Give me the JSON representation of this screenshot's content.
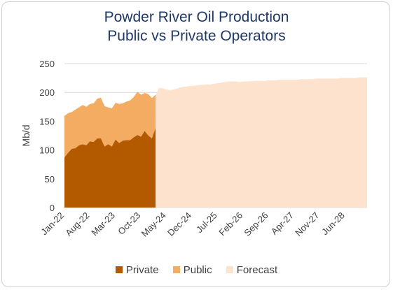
{
  "chart_data": {
    "type": "area",
    "title": "Powder River Oil Production",
    "subtitle": "Public vs Private Operators",
    "xlabel": "",
    "ylabel": "Mb/d",
    "ylim": [
      0,
      250
    ],
    "yticks": [
      0,
      50,
      100,
      150,
      200,
      250
    ],
    "xticks": [
      "Jan-22",
      "Aug-22",
      "Mar-23",
      "Oct-23",
      "May-24",
      "Dec-24",
      "Jul-25",
      "Feb-26",
      "Sep-26",
      "Apr-27",
      "Nov-27",
      "Jun-28"
    ],
    "grid": "horizontal",
    "legend_position": "bottom",
    "colors": {
      "Private": "#b35900",
      "Public": "#f4ac63",
      "Forecast": "#fde3cd",
      "gridline": "#d9d9d9",
      "title": "#1f3864"
    },
    "stacked": true,
    "historical": {
      "x": [
        "Jan-22",
        "Feb-22",
        "Mar-22",
        "Apr-22",
        "May-22",
        "Jun-22",
        "Jul-22",
        "Aug-22",
        "Sep-22",
        "Oct-22",
        "Nov-22",
        "Dec-22",
        "Jan-23",
        "Feb-23",
        "Mar-23",
        "Apr-23",
        "May-23",
        "Jun-23",
        "Jul-23",
        "Aug-23",
        "Sep-23",
        "Oct-23",
        "Nov-23",
        "Dec-23",
        "Jan-24",
        "Feb-24"
      ],
      "series": [
        {
          "name": "Private",
          "values": [
            87,
            95,
            102,
            103,
            108,
            110,
            108,
            115,
            114,
            120,
            120,
            106,
            110,
            106,
            118,
            112,
            116,
            117,
            117,
            122,
            126,
            123,
            133,
            125,
            120,
            138
          ]
        },
        {
          "name": "Public",
          "values": [
            72,
            69,
            64,
            67,
            66,
            68,
            67,
            65,
            67,
            69,
            71,
            70,
            64,
            66,
            64,
            68,
            65,
            67,
            69,
            70,
            75,
            73,
            66,
            72,
            70,
            58
          ]
        }
      ]
    },
    "forecast": {
      "name": "Forecast",
      "x": [
        "Feb-24",
        "Mar-24",
        "Apr-24",
        "May-24",
        "Jun-24",
        "Jul-24",
        "Aug-24",
        "Sep-24",
        "Oct-24",
        "Nov-24",
        "Dec-24",
        "Jan-25",
        "Feb-25",
        "Mar-25",
        "Apr-25",
        "May-25",
        "Jun-25",
        "Jul-25",
        "Aug-25",
        "Sep-25",
        "Oct-25",
        "Nov-25",
        "Dec-25",
        "Jan-26",
        "Feb-26",
        "Mar-26",
        "Apr-26",
        "May-26",
        "Jun-26",
        "Jul-26",
        "Aug-26",
        "Sep-26",
        "Oct-26",
        "Nov-26",
        "Dec-26",
        "Jan-27",
        "Feb-27",
        "Mar-27",
        "Apr-27",
        "May-27",
        "Jun-27",
        "Jul-27",
        "Aug-27",
        "Sep-27",
        "Oct-27",
        "Nov-27",
        "Dec-27",
        "Jan-28",
        "Feb-28",
        "Mar-28",
        "Apr-28",
        "May-28",
        "Jun-28",
        "Jul-28",
        "Aug-28",
        "Sep-28",
        "Oct-28",
        "Nov-28",
        "Dec-28"
      ],
      "values": [
        196,
        208,
        207,
        205,
        204,
        205,
        207,
        209,
        210,
        211,
        211,
        212,
        213,
        213,
        214,
        214,
        215,
        216,
        217,
        218,
        219,
        219,
        219,
        218,
        219,
        219,
        219,
        220,
        220,
        220,
        220,
        221,
        221,
        221,
        222,
        222,
        222,
        222,
        222,
        222,
        223,
        223,
        223,
        223,
        224,
        224,
        224,
        224,
        224,
        224,
        224,
        225,
        225,
        225,
        225,
        225,
        226,
        226,
        226
      ]
    }
  }
}
